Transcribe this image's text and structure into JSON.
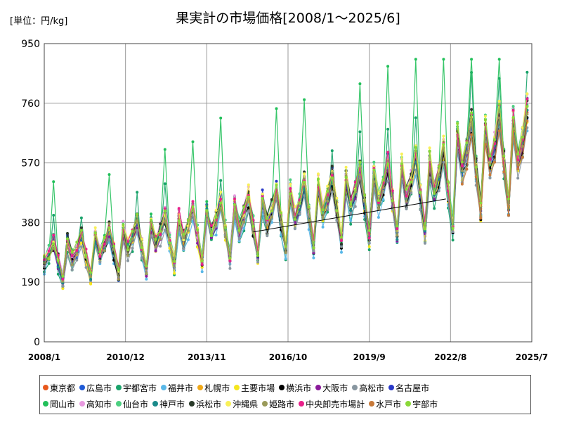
{
  "chart_data": {
    "type": "line",
    "title": "果実計の市場価格[2008/1～2025/6]",
    "unit_label": "[単位：円/kg]",
    "ylim": [
      0,
      950
    ],
    "y_ticks": [
      0,
      190,
      380,
      570,
      760,
      950
    ],
    "x_ticks": [
      "2008/1",
      "2010/12",
      "2013/11",
      "2016/10",
      "2019/9",
      "2022/8",
      "2025/7"
    ],
    "x_range": [
      "2008/1",
      "2025/7"
    ],
    "grid": true,
    "legend_position": "bottom",
    "main_series": "主要市場",
    "series": [
      {
        "name": "東京都",
        "color": "#e8581c",
        "start": "2008/1"
      },
      {
        "name": "広島市",
        "color": "#1f5ad6",
        "start": "2008/1"
      },
      {
        "name": "宇都宮市",
        "color": "#1aa36b",
        "start": "2008/1"
      },
      {
        "name": "福井市",
        "color": "#5ab8e8",
        "start": "2008/1"
      },
      {
        "name": "札幌市",
        "color": "#f0a818",
        "start": "2008/1"
      },
      {
        "name": "主要市場",
        "color": "#f5e61e",
        "start": "2008/1"
      },
      {
        "name": "横浜市",
        "color": "#000000",
        "start": "2008/1"
      },
      {
        "name": "大阪市",
        "color": "#8a1a9a",
        "start": "2008/1"
      },
      {
        "name": "高松市",
        "color": "#8896a0",
        "start": "2008/1"
      },
      {
        "name": "名古屋市",
        "color": "#2838c8",
        "start": "2008/1"
      },
      {
        "name": "岡山市",
        "color": "#22c05a",
        "start": "2008/1"
      },
      {
        "name": "高知市",
        "color": "#e89ae0",
        "start": "2008/1"
      },
      {
        "name": "仙台市",
        "color": "#4ccf80",
        "start": "2008/1"
      },
      {
        "name": "神戸市",
        "color": "#1a8a8a",
        "start": "2008/1"
      },
      {
        "name": "浜松市",
        "color": "#2a3a2a",
        "start": "2008/1"
      },
      {
        "name": "沖縄県",
        "color": "#f8f058",
        "start": "2008/1"
      },
      {
        "name": "姫路市",
        "color": "#9a9a5a",
        "start": "2008/1"
      },
      {
        "name": "中央卸売市場計",
        "color": "#e8208a",
        "start": "2008/1"
      },
      {
        "name": "水戸市",
        "color": "#c87a3a",
        "start": "2023/1"
      },
      {
        "name": "宇部市",
        "color": "#8ad838",
        "start": "2008/1"
      }
    ],
    "trend_line": {
      "from": {
        "x": "2015/7",
        "y": 350
      },
      "to": {
        "x": "2022/6",
        "y": 455
      }
    }
  }
}
